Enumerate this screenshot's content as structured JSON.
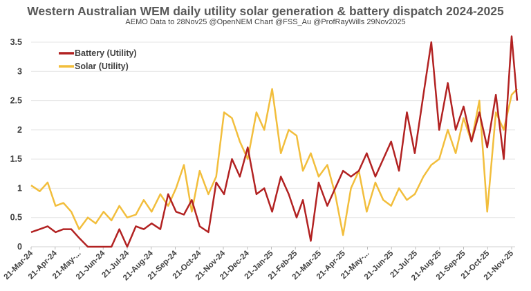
{
  "chart_data": {
    "type": "line",
    "title": "Western Australian WEM daily utility solar generation & battery dispatch 2024-2025",
    "subtitle": "AEMO Data to 28Nov25 @OpenNEM Chart @FSS_Au @ProfRayWills 29Nov2025",
    "xlabel": "",
    "ylabel": "",
    "ylim": [
      0,
      3.5
    ],
    "yticks": [
      "0",
      "0.5",
      "1",
      "1.5",
      "2",
      "2.5",
      "3",
      "3.5"
    ],
    "xticks": [
      "21-Mar-24",
      "21-Apr-24",
      "21-May-...",
      "21-Jun-24",
      "21-Jul-24",
      "21-Aug-24",
      "21-Sep-24",
      "21-Oct-24",
      "21-Nov-24",
      "21-Dec-24",
      "21-Jan-25",
      "21-Feb-25",
      "21-Mar-25",
      "21-Apr-25",
      "21-May-...",
      "21-Jun-25",
      "21-Jul-25",
      "21-Aug-25",
      "21-Sep-25",
      "21-Oct-25",
      "21-Nov-25"
    ],
    "grid": true,
    "legend": "top-left",
    "x": [
      "2024-03-21",
      "2024-04-01",
      "2024-04-11",
      "2024-04-21",
      "2024-05-01",
      "2024-05-11",
      "2024-05-21",
      "2024-06-01",
      "2024-06-11",
      "2024-06-21",
      "2024-07-01",
      "2024-07-11",
      "2024-07-21",
      "2024-08-01",
      "2024-08-11",
      "2024-08-21",
      "2024-09-01",
      "2024-09-11",
      "2024-09-21",
      "2024-10-01",
      "2024-10-11",
      "2024-10-21",
      "2024-11-01",
      "2024-11-11",
      "2024-11-21",
      "2024-12-01",
      "2024-12-11",
      "2024-12-21",
      "2025-01-01",
      "2025-01-11",
      "2025-01-21",
      "2025-02-01",
      "2025-02-11",
      "2025-02-21",
      "2025-03-01",
      "2025-03-11",
      "2025-03-21",
      "2025-04-01",
      "2025-04-11",
      "2025-04-21",
      "2025-05-01",
      "2025-05-11",
      "2025-05-21",
      "2025-06-01",
      "2025-06-11",
      "2025-06-21",
      "2025-07-01",
      "2025-07-11",
      "2025-07-21",
      "2025-08-01",
      "2025-08-11",
      "2025-08-21",
      "2025-09-01",
      "2025-09-11",
      "2025-09-21",
      "2025-10-01",
      "2025-10-11",
      "2025-10-21",
      "2025-11-01",
      "2025-11-11",
      "2025-11-21",
      "2025-11-28"
    ],
    "series": [
      {
        "name": "Battery (Utility)",
        "color": "#B22222",
        "values": [
          0.25,
          0.3,
          0.35,
          0.25,
          0.3,
          0.3,
          0.15,
          0.0,
          0.0,
          0.0,
          0.0,
          0.3,
          0.0,
          0.35,
          0.3,
          0.4,
          0.3,
          0.9,
          0.6,
          0.55,
          0.8,
          0.35,
          0.25,
          1.1,
          0.9,
          1.5,
          1.2,
          1.7,
          0.9,
          1.0,
          0.6,
          1.2,
          0.9,
          0.5,
          0.8,
          0.1,
          1.1,
          0.7,
          1.0,
          1.3,
          1.2,
          1.3,
          1.6,
          1.2,
          1.5,
          1.8,
          1.3,
          2.3,
          1.6,
          2.6,
          3.5,
          2.0,
          2.8,
          2.0,
          2.4,
          1.8,
          2.3,
          1.7,
          2.6,
          1.5,
          3.6,
          2.5
        ]
      },
      {
        "name": "Solar (Utility)",
        "color": "#F2BE3C",
        "values": [
          1.05,
          0.95,
          1.1,
          0.7,
          0.75,
          0.6,
          0.3,
          0.5,
          0.4,
          0.6,
          0.45,
          0.7,
          0.5,
          0.55,
          0.8,
          0.6,
          0.9,
          0.7,
          1.0,
          1.4,
          0.6,
          1.3,
          0.9,
          1.2,
          2.3,
          2.2,
          1.8,
          1.5,
          2.3,
          2.0,
          2.7,
          1.6,
          2.0,
          1.9,
          1.3,
          1.6,
          1.2,
          1.4,
          0.9,
          0.2,
          1.0,
          1.3,
          0.6,
          1.1,
          0.8,
          0.7,
          1.0,
          0.8,
          0.9,
          1.2,
          1.4,
          1.5,
          2.0,
          1.6,
          2.2,
          1.8,
          2.5,
          0.6,
          2.3,
          2.0,
          2.6,
          2.7
        ]
      }
    ]
  }
}
